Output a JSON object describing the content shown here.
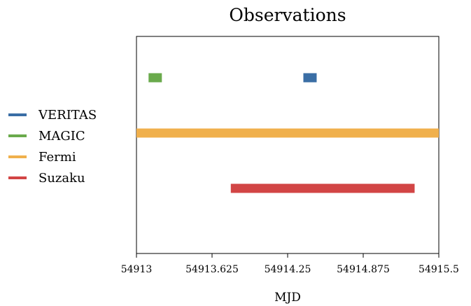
{
  "chart_data": {
    "type": "bar",
    "orientation": "horizontal",
    "title": "Observations",
    "xlabel": "MJD",
    "ylabel": "",
    "xlim": [
      54913,
      54915.5
    ],
    "xticks": [
      "54913",
      "54913.625",
      "54914.25",
      "54914.875",
      "54915.5"
    ],
    "grid": false,
    "legend_position": "left",
    "series": [
      {
        "name": "VERITAS",
        "color": "#3a6ea5",
        "start": 54914.38,
        "end": 54914.49
      },
      {
        "name": "MAGIC",
        "color": "#6aaa4c",
        "start": 54913.1,
        "end": 54913.21
      },
      {
        "name": "Fermi",
        "color": "#f0b04c",
        "start": 54913,
        "end": 54915.5
      },
      {
        "name": "Suzaku",
        "color": "#d24545",
        "start": 54913.78,
        "end": 54915.3
      }
    ]
  }
}
